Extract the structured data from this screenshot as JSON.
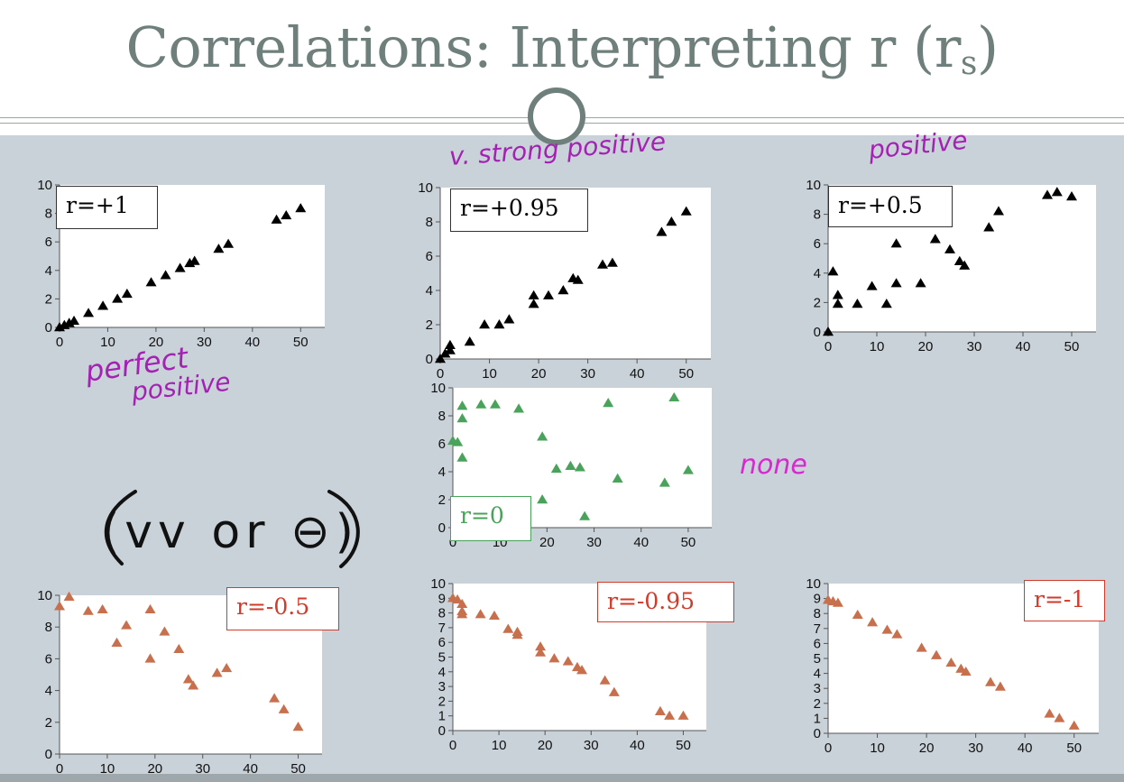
{
  "slide": {
    "title_main": "Correlations: Interpreting r (r",
    "title_sub": "s",
    "title_end": ")"
  },
  "annotations": {
    "perfect_positive_1": "perfect",
    "perfect_positive_2": "positive",
    "very_strong_positive": "v. strong positive",
    "positive": "positive",
    "none": "none",
    "neg_note": "(vv or ⊖)"
  },
  "colors": {
    "black_series": "#000000",
    "green_series": "#4aa35a",
    "red_series": "#c8704e",
    "red_label": "#d23a2a",
    "green_label": "#4aa35a",
    "annotation_purple": "#a422b3",
    "annotation_magenta": "#d62ad0"
  },
  "chart_data": [
    {
      "type": "scatter",
      "label": "r=+1",
      "series_color": "#000000",
      "label_color": "#111111",
      "xticks": [
        "0",
        "10",
        "20",
        "30",
        "40",
        "50"
      ],
      "yticks": [
        "0",
        "2",
        "4",
        "6",
        "8",
        "10"
      ],
      "xlim": [
        0,
        55
      ],
      "ylim": [
        0,
        10
      ],
      "points": [
        [
          0,
          0
        ],
        [
          1,
          0.15
        ],
        [
          2,
          0.3
        ],
        [
          3,
          0.45
        ],
        [
          6,
          1
        ],
        [
          9,
          1.5
        ],
        [
          12,
          2
        ],
        [
          14,
          2.35
        ],
        [
          19,
          3.15
        ],
        [
          22,
          3.65
        ],
        [
          25,
          4.15
        ],
        [
          27,
          4.5
        ],
        [
          28,
          4.65
        ],
        [
          33,
          5.5
        ],
        [
          35,
          5.85
        ],
        [
          45,
          7.55
        ],
        [
          47,
          7.85
        ],
        [
          50,
          8.35
        ]
      ]
    },
    {
      "type": "scatter",
      "label": "r=+0.95",
      "series_color": "#000000",
      "label_color": "#111111",
      "xticks": [
        "0",
        "10",
        "20",
        "30",
        "40",
        "50"
      ],
      "yticks": [
        "0",
        "2",
        "4",
        "6",
        "8",
        "10"
      ],
      "xlim": [
        0,
        55
      ],
      "ylim": [
        0,
        10
      ],
      "points": [
        [
          0,
          0
        ],
        [
          1,
          0.3
        ],
        [
          2,
          0.5
        ],
        [
          2,
          0.8
        ],
        [
          6,
          1
        ],
        [
          9,
          2
        ],
        [
          12,
          2
        ],
        [
          14,
          2.3
        ],
        [
          19,
          3.2
        ],
        [
          19,
          3.7
        ],
        [
          22,
          3.7
        ],
        [
          25,
          4
        ],
        [
          27,
          4.7
        ],
        [
          28,
          4.6
        ],
        [
          33,
          5.5
        ],
        [
          35,
          5.6
        ],
        [
          45,
          7.4
        ],
        [
          47,
          8
        ],
        [
          50,
          8.6
        ]
      ]
    },
    {
      "type": "scatter",
      "label": "r=+0.5",
      "series_color": "#000000",
      "label_color": "#111111",
      "xticks": [
        "0",
        "10",
        "20",
        "30",
        "40",
        "50"
      ],
      "yticks": [
        "0",
        "2",
        "4",
        "6",
        "8",
        "10"
      ],
      "xlim": [
        0,
        55
      ],
      "ylim": [
        0,
        10
      ],
      "points": [
        [
          0,
          0
        ],
        [
          1,
          4.1
        ],
        [
          2,
          2.5
        ],
        [
          2,
          1.9
        ],
        [
          6,
          1.9
        ],
        [
          9,
          3.1
        ],
        [
          12,
          1.9
        ],
        [
          14,
          6
        ],
        [
          14,
          3.3
        ],
        [
          19,
          3.3
        ],
        [
          22,
          6.3
        ],
        [
          25,
          5.6
        ],
        [
          27,
          4.8
        ],
        [
          28,
          4.5
        ],
        [
          33,
          7.1
        ],
        [
          35,
          8.2
        ],
        [
          45,
          9.3
        ],
        [
          47,
          9.5
        ],
        [
          50,
          9.2
        ]
      ]
    },
    {
      "type": "scatter",
      "label": "r=0",
      "series_color": "#4aa35a",
      "label_color": "#4aa35a",
      "xticks": [
        "0",
        "10",
        "20",
        "30",
        "40",
        "50"
      ],
      "yticks": [
        "0",
        "2",
        "4",
        "6",
        "8",
        "10"
      ],
      "xlim": [
        0,
        55
      ],
      "ylim": [
        0,
        10
      ],
      "points": [
        [
          0,
          6.2
        ],
        [
          1,
          6.1
        ],
        [
          2,
          8.7
        ],
        [
          2,
          7.8
        ],
        [
          2,
          5
        ],
        [
          6,
          8.8
        ],
        [
          9,
          8.8
        ],
        [
          14,
          8.5
        ],
        [
          19,
          6.5
        ],
        [
          19,
          2
        ],
        [
          22,
          4.2
        ],
        [
          25,
          4.4
        ],
        [
          27,
          4.3
        ],
        [
          28,
          0.8
        ],
        [
          33,
          8.9
        ],
        [
          35,
          3.5
        ],
        [
          45,
          3.2
        ],
        [
          47,
          9.3
        ],
        [
          50,
          4.1
        ]
      ]
    },
    {
      "type": "scatter",
      "label": "r=-0.5",
      "series_color": "#c8704e",
      "label_color": "#d23a2a",
      "xticks": [
        "0",
        "10",
        "20",
        "30",
        "40",
        "50"
      ],
      "yticks": [
        "0",
        "2",
        "4",
        "6",
        "8",
        "10"
      ],
      "xlim": [
        0,
        55
      ],
      "ylim": [
        0,
        10
      ],
      "points": [
        [
          0,
          9.3
        ],
        [
          2,
          9.9
        ],
        [
          6,
          9
        ],
        [
          9,
          9.1
        ],
        [
          12,
          7
        ],
        [
          14,
          8.1
        ],
        [
          19,
          9.1
        ],
        [
          19,
          6
        ],
        [
          22,
          7.7
        ],
        [
          25,
          6.6
        ],
        [
          27,
          4.7
        ],
        [
          28,
          4.3
        ],
        [
          33,
          5.1
        ],
        [
          35,
          5.4
        ],
        [
          45,
          3.5
        ],
        [
          47,
          2.8
        ],
        [
          50,
          1.7
        ]
      ]
    },
    {
      "type": "scatter",
      "label": "r=-0.95",
      "series_color": "#c8704e",
      "label_color": "#d23a2a",
      "xticks": [
        "0",
        "10",
        "20",
        "30",
        "40",
        "50"
      ],
      "yticks": [
        "0",
        "1",
        "2",
        "3",
        "4",
        "5",
        "6",
        "7",
        "8",
        "9",
        "10"
      ],
      "xlim": [
        0,
        55
      ],
      "ylim": [
        0,
        10
      ],
      "points": [
        [
          0,
          9
        ],
        [
          1,
          8.9
        ],
        [
          2,
          8.6
        ],
        [
          2,
          8.1
        ],
        [
          2,
          7.9
        ],
        [
          6,
          7.9
        ],
        [
          9,
          7.8
        ],
        [
          12,
          6.9
        ],
        [
          14,
          6.7
        ],
        [
          14,
          6.5
        ],
        [
          19,
          5.7
        ],
        [
          19,
          5.3
        ],
        [
          22,
          4.9
        ],
        [
          25,
          4.7
        ],
        [
          27,
          4.3
        ],
        [
          28,
          4.1
        ],
        [
          33,
          3.4
        ],
        [
          35,
          2.6
        ],
        [
          45,
          1.3
        ],
        [
          47,
          1
        ],
        [
          50,
          1
        ]
      ]
    },
    {
      "type": "scatter",
      "label": "r=-1",
      "series_color": "#c8704e",
      "label_color": "#d23a2a",
      "xticks": [
        "0",
        "10",
        "20",
        "30",
        "40",
        "50"
      ],
      "yticks": [
        "0",
        "1",
        "2",
        "3",
        "4",
        "5",
        "6",
        "7",
        "8",
        "9",
        "10"
      ],
      "xlim": [
        0,
        55
      ],
      "ylim": [
        0,
        10
      ],
      "points": [
        [
          0,
          8.9
        ],
        [
          1,
          8.8
        ],
        [
          2,
          8.7
        ],
        [
          6,
          7.9
        ],
        [
          9,
          7.4
        ],
        [
          12,
          6.9
        ],
        [
          14,
          6.6
        ],
        [
          19,
          5.7
        ],
        [
          22,
          5.2
        ],
        [
          25,
          4.7
        ],
        [
          27,
          4.3
        ],
        [
          28,
          4.1
        ],
        [
          33,
          3.4
        ],
        [
          35,
          3.1
        ],
        [
          45,
          1.3
        ],
        [
          47,
          1
        ],
        [
          50,
          0.5
        ]
      ]
    }
  ]
}
